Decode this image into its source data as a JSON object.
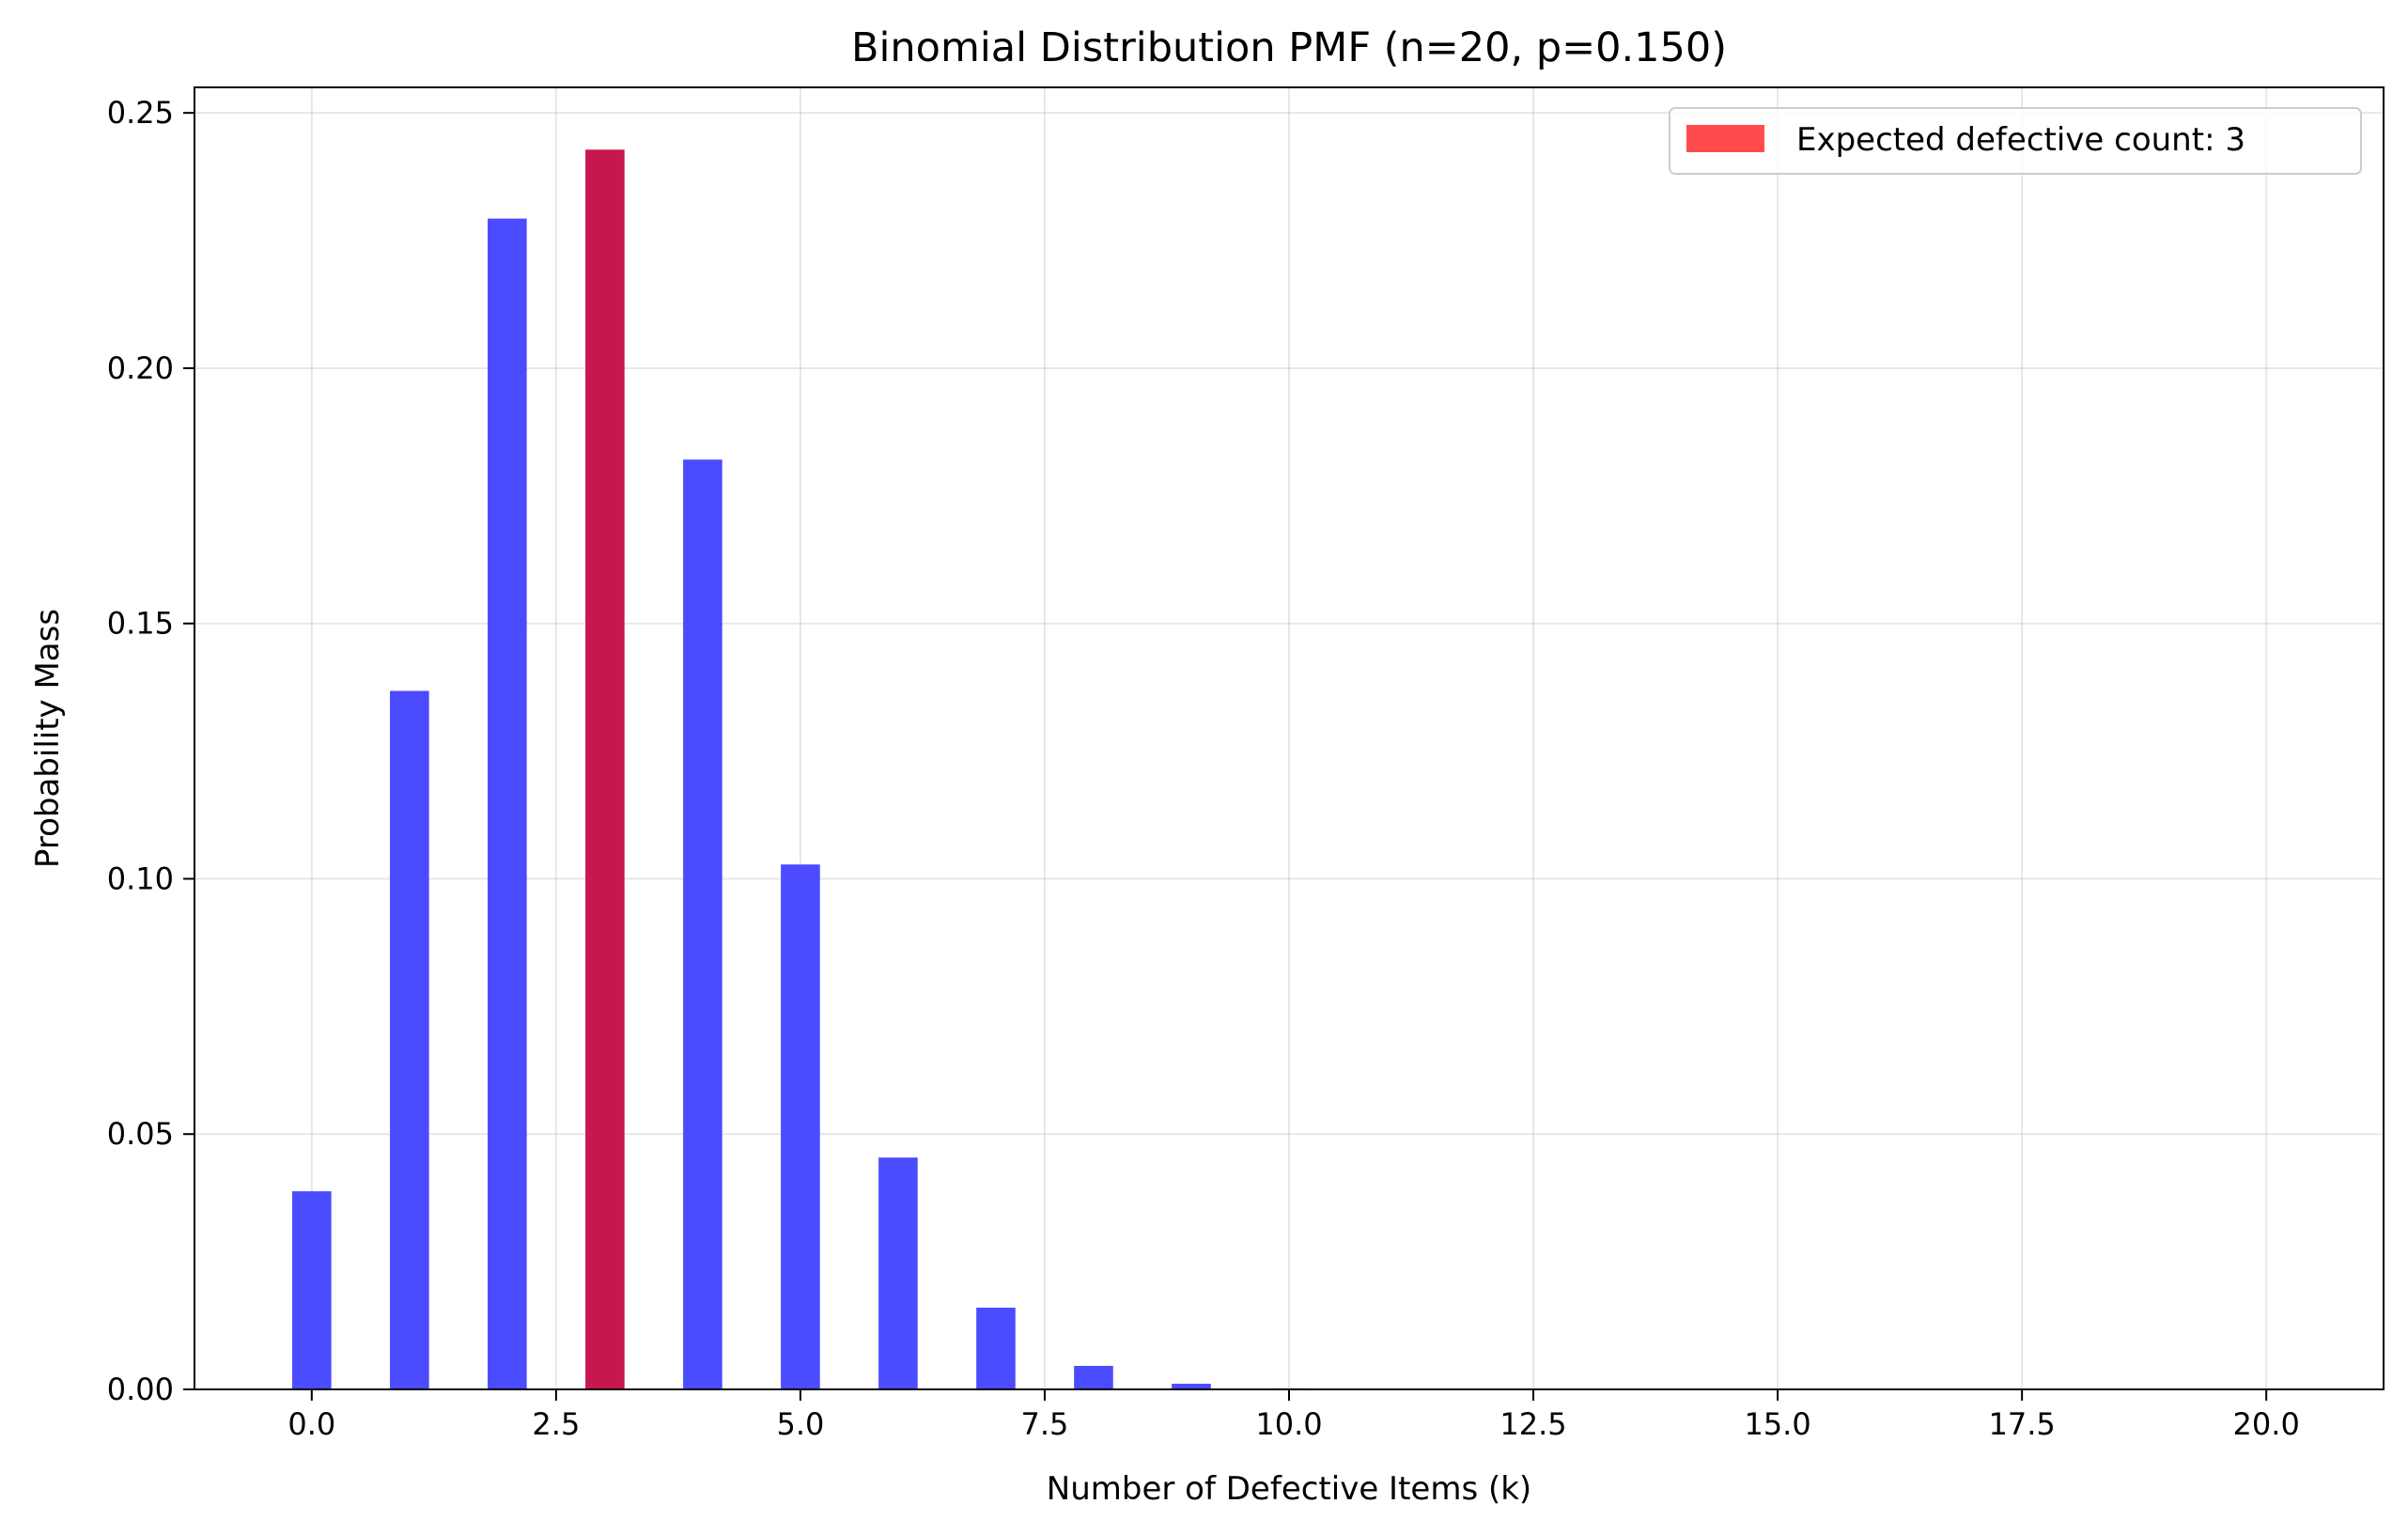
{
  "chart_data": {
    "type": "bar",
    "title": "Binomial Distribution PMF (n=20, p=0.150)",
    "xlabel": "Number of Defective Items (k)",
    "ylabel": "Probability Mass",
    "xlim": [
      -1.2,
      21.2
    ],
    "ylim": [
      0,
      0.255
    ],
    "x_ticks": [
      0,
      2.5,
      5,
      7.5,
      10,
      12.5,
      15,
      17.5,
      20
    ],
    "x_tick_labels": [
      "0.0",
      "2.5",
      "5.0",
      "7.5",
      "10.0",
      "12.5",
      "15.0",
      "17.5",
      "20.0"
    ],
    "y_ticks": [
      0,
      0.05,
      0.1,
      0.15,
      0.2,
      0.25
    ],
    "y_tick_labels": [
      "0.00",
      "0.05",
      "0.10",
      "0.15",
      "0.20",
      "0.25"
    ],
    "bar_width": 0.4,
    "grid": true,
    "series": [
      {
        "x": [
          0,
          1,
          2,
          3,
          4,
          5,
          6,
          7,
          8,
          9,
          10,
          11,
          12,
          13,
          14,
          15,
          16,
          17,
          18,
          19,
          20
        ],
        "values": [
          0.0388,
          0.1368,
          0.2293,
          0.2428,
          0.1821,
          0.1028,
          0.0454,
          0.016,
          0.0046,
          0.0011,
          0.0002,
          0.0,
          0.0,
          0.0,
          0.0,
          0.0,
          0.0,
          0.0,
          0.0,
          0.0,
          0.0
        ],
        "color": "#4b4bff"
      }
    ],
    "highlight": {
      "x": 3,
      "value": 0.2428,
      "color": "#ff4b4b",
      "overlap_color": "#c8174e",
      "label": "Expected defective count: 3"
    },
    "legend": {
      "position": "top-right",
      "entries": [
        "Expected defective count: 3"
      ]
    }
  }
}
